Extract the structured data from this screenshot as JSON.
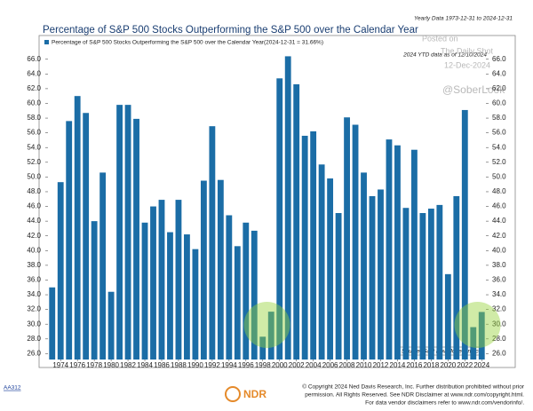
{
  "chart_data": {
    "type": "bar",
    "title": "Percentage of S&P 500 Stocks Outperforming the S&P 500 over the Calendar Year",
    "subtitle": "Yearly Data 1973-12-31 to 2024-12-31",
    "legend": "Percentage of S&P 500 Stocks Outperforming the S&P 500 over the Calendar Year(2024-12-31 = 31.66%)",
    "annotations": [
      "2024 YTD data as of 12/10/2024",
      "Posted on",
      "The Daily Shot",
      "12-Dec-2024",
      "@SoberLook"
    ],
    "source": "Source: S&P Dow Jones Indices",
    "footer": {
      "code": "AA312",
      "logo": "NDR",
      "copyright": [
        "© Copyright 2024 Ned Davis Research, Inc. Further distribution prohibited without prior",
        "permission. All Rights Reserved. See NDR Disclaimer at www.ndr.com/copyright.html.",
        "For data vendor disclaimers refer to www.ndr.com/vendorinfo/."
      ]
    },
    "categories": [
      null,
      "1974",
      null,
      "1976",
      null,
      "1978",
      null,
      "1980",
      null,
      "1982",
      null,
      "1984",
      null,
      "1986",
      null,
      "1988",
      null,
      "1990",
      null,
      "1992",
      null,
      "1994",
      null,
      "1996",
      null,
      "1998",
      null,
      "2000",
      null,
      "2002",
      null,
      "2004",
      null,
      "2006",
      null,
      "2008",
      null,
      "2010",
      null,
      "2012",
      null,
      "2014",
      null,
      "2016",
      null,
      "2018",
      null,
      "2020",
      null,
      "2022",
      null,
      "2024"
    ],
    "values": [
      35.0,
      49.3,
      57.6,
      61.0,
      58.7,
      44.0,
      50.6,
      34.4,
      59.8,
      59.8,
      57.9,
      43.8,
      46.0,
      46.9,
      42.5,
      46.9,
      42.2,
      40.2,
      49.5,
      56.9,
      49.6,
      44.8,
      40.6,
      43.8,
      42.7,
      28.3,
      31.7,
      63.4,
      66.4,
      62.6,
      55.6,
      56.2,
      51.7,
      49.8,
      45.1,
      58.1,
      57.1,
      50.6,
      47.4,
      48.3,
      55.1,
      54.3,
      45.8,
      53.7,
      45.1,
      45.7,
      46.2,
      36.8,
      47.4,
      59.1,
      29.6,
      31.66
    ],
    "color": "#1b6da6",
    "ylim": [
      25.2,
      68.5
    ],
    "yticks": [
      {
        "value": 26,
        "label": "26.0"
      },
      {
        "value": 28,
        "label": "28.0"
      },
      {
        "value": 30,
        "label": "30.0"
      },
      {
        "value": 32,
        "label": "32.0"
      },
      {
        "value": 34,
        "label": "34.0"
      },
      {
        "value": 36,
        "label": "36.0"
      },
      {
        "value": 38,
        "label": "38.0"
      },
      {
        "value": 40,
        "label": "40.0"
      },
      {
        "value": 42,
        "label": "42.0"
      },
      {
        "value": 44,
        "label": "44.0"
      },
      {
        "value": 46,
        "label": "46.0"
      },
      {
        "value": 48,
        "label": "48.0"
      },
      {
        "value": 50,
        "label": "50.0"
      },
      {
        "value": 52,
        "label": "52.0"
      },
      {
        "value": 54,
        "label": "54.0"
      },
      {
        "value": 56,
        "label": "56.0"
      },
      {
        "value": 58,
        "label": "58.0"
      },
      {
        "value": 60,
        "label": "60.0"
      },
      {
        "value": 62,
        "label": "62.0"
      },
      {
        "value": 64,
        "label": "64.0"
      },
      {
        "value": 66,
        "label": "66.0"
      }
    ],
    "grid": false
  }
}
